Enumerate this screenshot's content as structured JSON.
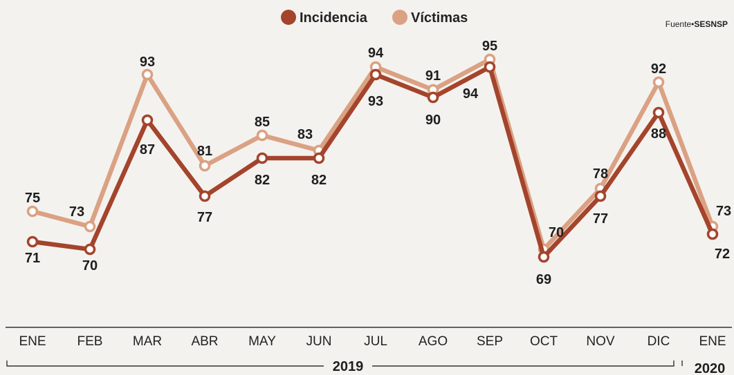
{
  "legend": {
    "incidencia": "Incidencia",
    "victimas": "Víctimas"
  },
  "source": {
    "prefix": "Fuente•",
    "name": "SESNSP"
  },
  "colors": {
    "incidencia": "#a4442c",
    "victimas": "#daa183",
    "axis": "#333333"
  },
  "year_2019": "2019",
  "year_2020": "2020",
  "chart_data": {
    "type": "line",
    "categories": [
      "ENE",
      "FEB",
      "MAR",
      "ABR",
      "MAY",
      "JUN",
      "JUL",
      "AGO",
      "SEP",
      "OCT",
      "NOV",
      "DIC",
      "ENE"
    ],
    "series": [
      {
        "name": "Incidencia",
        "values": [
          71,
          70,
          87,
          77,
          82,
          82,
          93,
          90,
          94,
          69,
          77,
          88,
          72
        ]
      },
      {
        "name": "Víctimas",
        "values": [
          75,
          73,
          93,
          81,
          85,
          83,
          94,
          91,
          95,
          70,
          78,
          92,
          73
        ]
      }
    ],
    "x_groups": [
      {
        "label": "2019",
        "from": 0,
        "to": 11
      },
      {
        "label": "2020",
        "from": 12,
        "to": 12
      }
    ]
  }
}
